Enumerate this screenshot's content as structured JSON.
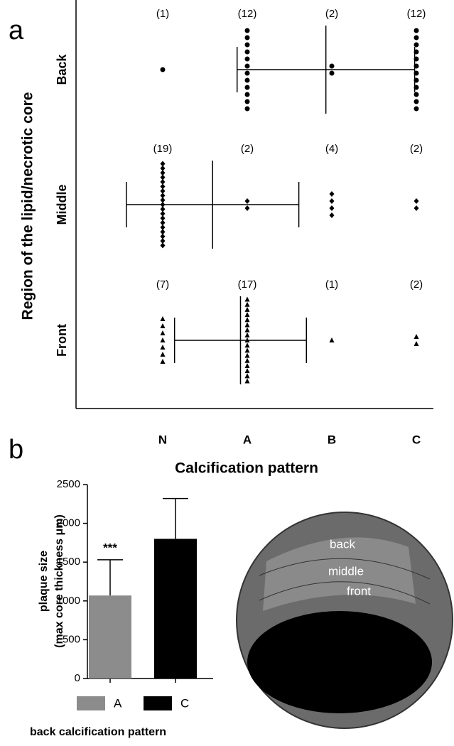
{
  "panel_labels": [
    "a",
    "b"
  ],
  "chart_data": [
    {
      "type": "dot",
      "categories": [
        "N",
        "A",
        "B",
        "C"
      ],
      "xlabel": "Calcification pattern",
      "ylabel": "Region of the lipid/necrotic core",
      "series": [
        {
          "name": "Back",
          "marker": "circle",
          "values": [
            1,
            12,
            2,
            12
          ],
          "value_labels": [
            "(1)",
            "(12)",
            "(2)",
            "(12)"
          ],
          "mean": 1.93,
          "sd": 1.05
        },
        {
          "name": "Middle",
          "marker": "diamond",
          "values": [
            19,
            2,
            4,
            2
          ],
          "value_labels": [
            "(19)",
            "(2)",
            "(4)",
            "(2)"
          ],
          "mean": 0.59,
          "sd": 1.02
        },
        {
          "name": "Front",
          "marker": "triangle",
          "values": [
            7,
            17,
            1,
            2
          ],
          "value_labels": [
            "(7)",
            "(17)",
            "(1)",
            "(2)"
          ],
          "mean": 0.92,
          "sd": 0.78
        }
      ]
    },
    {
      "type": "bar",
      "categories": [
        "A",
        "C"
      ],
      "values": [
        1070,
        1800
      ],
      "errors": [
        460,
        520
      ],
      "colors": [
        "#8c8c8c",
        "#000000"
      ],
      "ylim": [
        0,
        2500
      ],
      "yticks": [
        0,
        500,
        1000,
        1500,
        2000,
        2500
      ],
      "ylabel": [
        "plaque size",
        "(max core thickness μm)"
      ],
      "xlabel": "back calcification pattern",
      "annotation": "***",
      "legend": true
    }
  ],
  "diagram": {
    "labels": [
      "back",
      "middle",
      "front"
    ]
  }
}
